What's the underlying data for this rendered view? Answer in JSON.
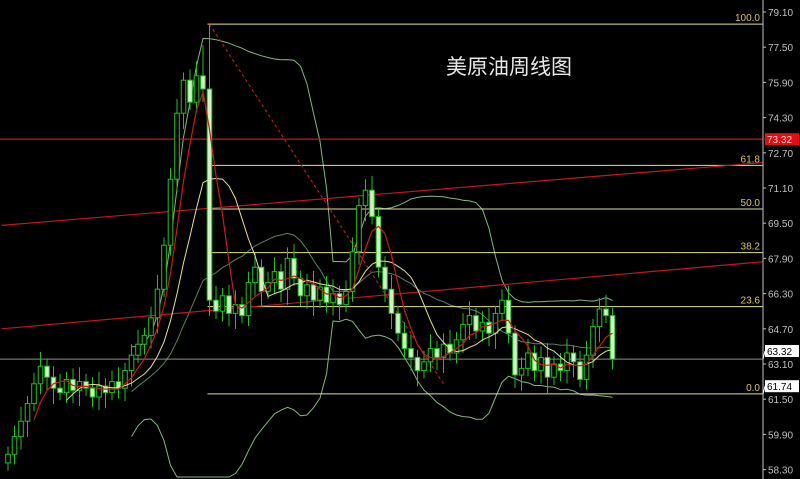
{
  "chart_data": {
    "type": "candlestick",
    "title": "美原油周线图",
    "ylim": [
      57.9,
      79.64
    ],
    "y_ticks": [
      "79.10",
      "77.50",
      "75.90",
      "74.30",
      "72.70",
      "71.10",
      "69.50",
      "67.90",
      "66.30",
      "64.70",
      "63.10",
      "61.50",
      "59.90",
      "58.30"
    ],
    "grid": false,
    "first_open": 58.6,
    "closes": [
      59.0,
      59.8,
      60.5,
      61.3,
      62.2,
      63.0,
      62.5,
      62.0,
      61.8,
      62.4,
      61.9,
      62.3,
      62.0,
      61.6,
      62.1,
      61.8,
      62.3,
      62.0,
      62.8,
      63.5,
      64.0,
      64.4,
      65.2,
      66.5,
      68.5,
      71.5,
      74.5,
      76.0,
      75.0,
      76.2,
      75.6,
      66.0,
      65.5,
      66.2,
      65.4,
      65.8,
      65.3,
      66.8,
      67.5,
      66.4,
      66.8,
      67.3,
      66.5,
      67.9,
      67.0,
      66.2,
      66.7,
      66.0,
      66.6,
      65.9,
      66.3,
      65.8,
      66.4,
      68.2,
      70.3,
      71.0,
      69.8,
      67.5,
      66.5,
      65.4,
      64.5,
      63.8,
      63.4,
      62.8,
      63.2,
      63.8,
      63.4,
      64.0,
      63.6,
      64.2,
      64.9,
      65.3,
      64.6,
      65.0,
      64.5,
      65.4,
      66.0,
      64.5,
      62.6,
      62.9,
      63.6,
      62.8,
      63.4,
      62.5,
      63.1,
      62.8,
      63.6,
      63.2,
      62.4,
      63.5,
      64.8,
      65.6,
      65.3,
      63.32
    ],
    "peak": {
      "index": 31,
      "high": 78.55
    },
    "indicators": {
      "ma_fast_period": 5,
      "ma_slow_period": 10,
      "bollinger_period": 20,
      "bollinger_width": 2
    },
    "fibonacci": {
      "high": 78.55,
      "low": 61.74,
      "levels": [
        {
          "label": "100.0",
          "ratio": 1.0
        },
        {
          "label": "61.8",
          "ratio": 0.618
        },
        {
          "label": "50.0",
          "ratio": 0.5
        },
        {
          "label": "38.2",
          "ratio": 0.382
        },
        {
          "label": "23.6",
          "ratio": 0.236
        },
        {
          "label": "0.0",
          "ratio": 0.0
        }
      ]
    },
    "resistance_line": {
      "price": 73.32,
      "label": "73.32"
    },
    "current_price": {
      "price": 63.32,
      "label": "63.32"
    },
    "low_marker": {
      "price": 61.74,
      "label": "61.74"
    },
    "trendlines": [
      {
        "kind": "upper-rising",
        "from": {
          "index": -1,
          "price": 69.4
        },
        "to": {
          "index": 122,
          "price": 72.4
        }
      },
      {
        "kind": "lower-rising",
        "from": {
          "index": -1,
          "price": 64.7
        },
        "to": {
          "index": 122,
          "price": 67.9
        }
      },
      {
        "kind": "dashed-falling",
        "from": {
          "index": 31,
          "price": 78.55
        },
        "to": {
          "index": 67,
          "price": 62.2
        }
      }
    ],
    "colors": {
      "background": "#000000",
      "candle": "#22c022",
      "candle_down_fill": "#ccf5c0",
      "ma_fast": "#d01818",
      "ma_slow": "#e8e090",
      "bollinger": "#80b880",
      "fib": "#e0e090",
      "fib_label": "#d8c860",
      "trend": "#c01818",
      "axis": "#c0c0c0",
      "price_tag": "#ffffff",
      "resistance_tag": "#e01010"
    }
  }
}
